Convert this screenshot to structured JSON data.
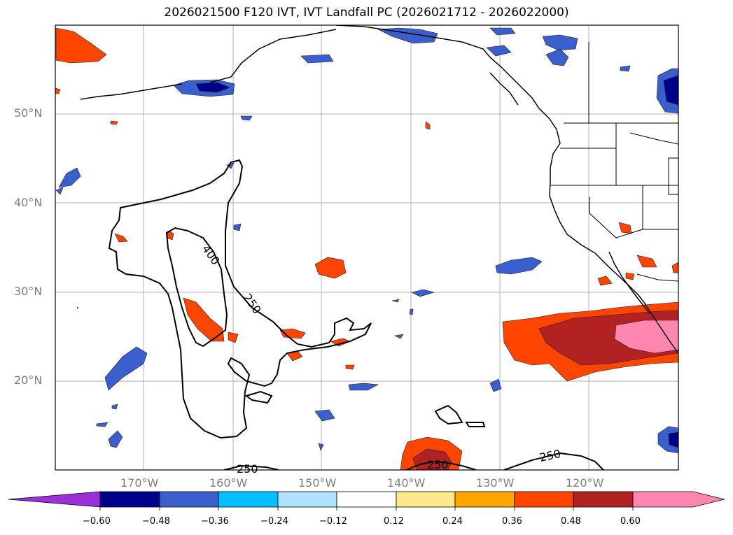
{
  "title": "2026021500 F120 IVT, IVT Landfall PC (2026021712 - 2026022000)",
  "lat_labels": [
    "50°N",
    "40°N",
    "30°N",
    "20°N"
  ],
  "lon_labels": [
    "170°W",
    "160°W",
    "150°W",
    "140°W",
    "130°W",
    "120°W"
  ],
  "contour_labels": [
    "400",
    "250",
    "250",
    "250",
    "250"
  ],
  "colorbar": {
    "tick_labels": [
      "−0.60",
      "−0.48",
      "−0.36",
      "−0.24",
      "−0.12",
      "0.12",
      "0.24",
      "0.36",
      "0.48",
      "0.60"
    ],
    "colors": [
      "#9b30d9",
      "#00008b",
      "#3a5fcd",
      "#00bfff",
      "#b0e2ff",
      "#ffffff",
      "#ffe78c",
      "#ffa500",
      "#ff4500",
      "#b22222",
      "#ff86b0"
    ]
  }
}
